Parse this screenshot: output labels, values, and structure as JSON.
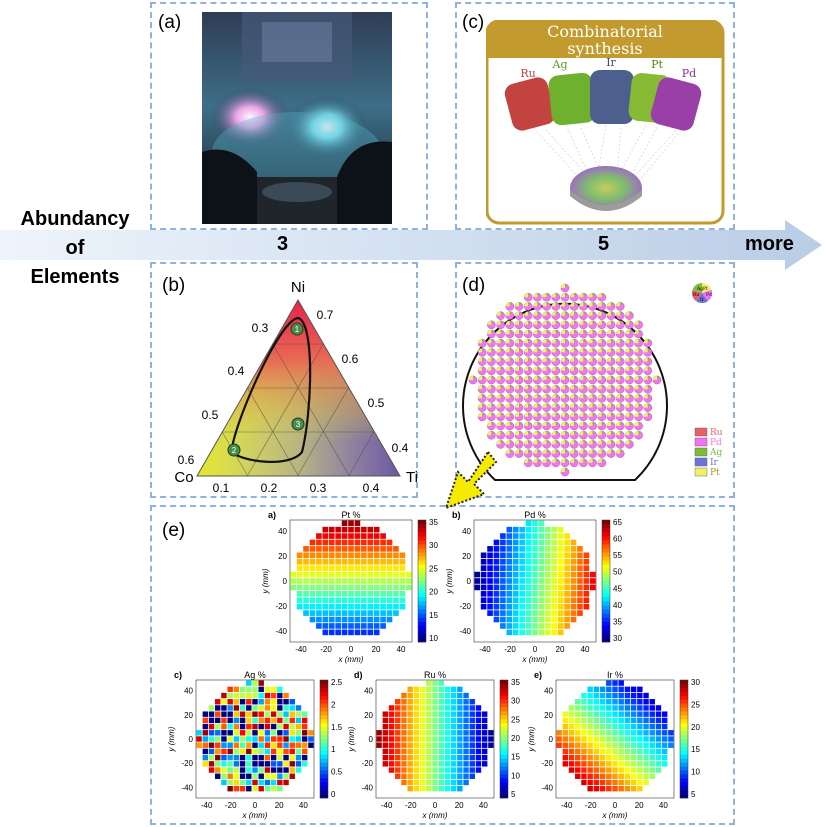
{
  "arrow": {
    "left_label_lines": [
      "Abundancy",
      "of",
      "Elements"
    ],
    "count_3": "3",
    "count_5": "5",
    "more": "more"
  },
  "panel_a": {
    "label": "(a)"
  },
  "panel_b": {
    "label": "(b)",
    "corner_top": "Ni",
    "corner_left": "Co",
    "corner_right": "Ti",
    "left_ticks": [
      "0.3",
      "0.4",
      "0.5",
      "0.6"
    ],
    "right_ticks": [
      "0.7",
      "0.6",
      "0.5",
      "0.4"
    ],
    "bottom_ticks": [
      "0.1",
      "0.2",
      "0.3",
      "0.4"
    ],
    "markers": [
      "1",
      "2",
      "3"
    ]
  },
  "panel_c": {
    "label": "(c)",
    "banner_line1": "Combinatorial",
    "banner_line2": "synthesis",
    "targets": [
      "Ru",
      "Ag",
      "Ir",
      "Pt",
      "Pd"
    ]
  },
  "panel_d": {
    "label": "(d)",
    "pie_key": [
      "Ag",
      "Pt",
      "Ru",
      "Pd",
      "Ir"
    ],
    "legend": [
      {
        "name": "Ru",
        "color": "#e8616a"
      },
      {
        "name": "Pd",
        "color": "#f472f4"
      },
      {
        "name": "Ag",
        "color": "#7cbd3c"
      },
      {
        "name": "Ir",
        "color": "#6d73d6"
      },
      {
        "name": "Pt",
        "color": "#f1ee6e"
      }
    ]
  },
  "panel_e": {
    "label": "(e)",
    "maps": [
      {
        "id": "a",
        "letter": "a)",
        "title": "Pt %",
        "cb_ticks": [
          "35",
          "30",
          "25",
          "20",
          "15",
          "10"
        ]
      },
      {
        "id": "b",
        "letter": "b)",
        "title": "Pd %",
        "cb_ticks": [
          "65",
          "60",
          "55",
          "50",
          "45",
          "40",
          "35",
          "30"
        ]
      },
      {
        "id": "c",
        "letter": "c)",
        "title": "Ag %",
        "cb_ticks": [
          "2.5",
          "2",
          "1.5",
          "1",
          "0.5",
          "0"
        ]
      },
      {
        "id": "d",
        "letter": "d)",
        "title": "Ru %",
        "cb_ticks": [
          "35",
          "30",
          "25",
          "20",
          "15",
          "10",
          "5"
        ]
      },
      {
        "id": "e",
        "letter": "e)",
        "title": "Ir %",
        "cb_ticks": [
          "30",
          "25",
          "20",
          "15",
          "10",
          "5"
        ]
      }
    ],
    "x_ticks": [
      "-40",
      "-20",
      "0",
      "20",
      "40"
    ],
    "y_ticks": [
      "40",
      "20",
      "0",
      "-20",
      "-40"
    ],
    "xlabel": "x (mm)",
    "ylabel": "y (mm)"
  }
}
